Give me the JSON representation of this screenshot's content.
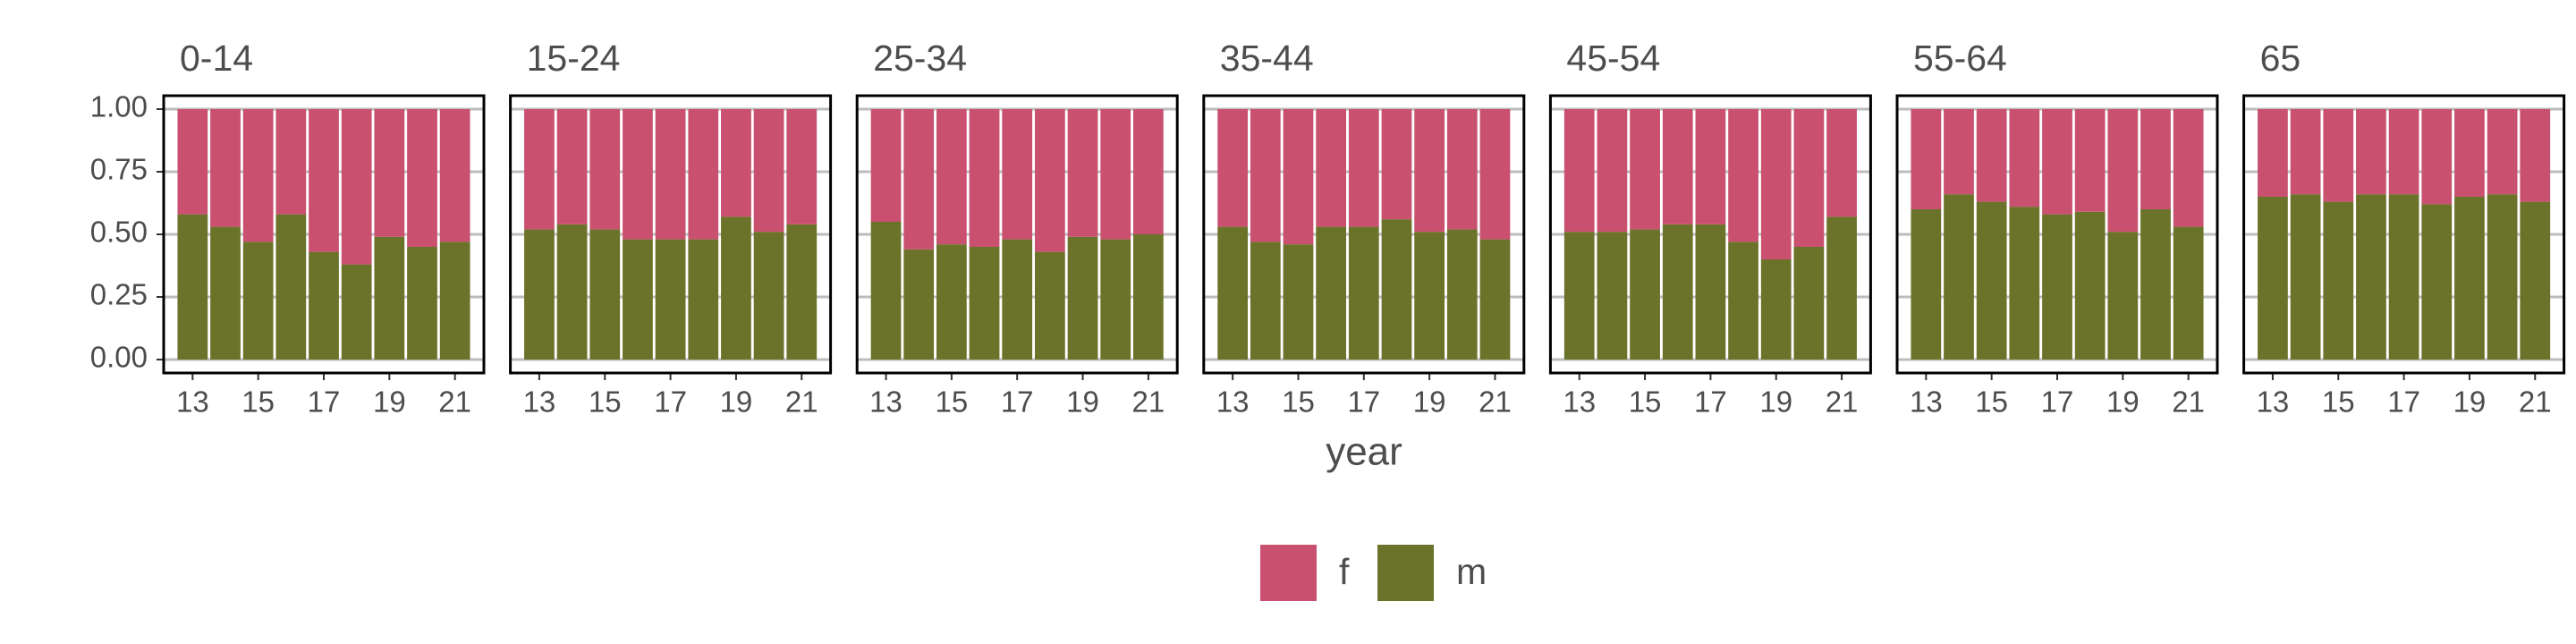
{
  "chart_data": {
    "type": "bar",
    "stacked": true,
    "xlabel": "year",
    "categories": [
      "13",
      null,
      "15",
      null,
      "17",
      null,
      "19",
      null,
      "21"
    ],
    "ylim": [
      0,
      1
    ],
    "yticks": [
      {
        "value": 0,
        "label": "0.00"
      },
      {
        "value": 0.25,
        "label": "0.25"
      },
      {
        "value": 0.5,
        "label": "0.50"
      },
      {
        "value": 0.75,
        "label": "0.75"
      },
      {
        "value": 1,
        "label": "1.00"
      }
    ],
    "grid": true,
    "series": [
      {
        "name": "f",
        "color": "#c9506f"
      },
      {
        "name": "m",
        "color": "#6a7329"
      }
    ],
    "panels": [
      {
        "title": "0-14",
        "series": [
          {
            "values": [
              0.42,
              0.47,
              0.53,
              0.42,
              0.57,
              0.62,
              0.51,
              0.55,
              0.53
            ]
          },
          {
            "values": [
              0.58,
              0.53,
              0.47,
              0.58,
              0.43,
              0.38,
              0.49,
              0.45,
              0.47
            ]
          }
        ]
      },
      {
        "title": "15-24",
        "series": [
          {
            "values": [
              0.48,
              0.46,
              0.48,
              0.52,
              0.52,
              0.52,
              0.43,
              0.49,
              0.46
            ]
          },
          {
            "values": [
              0.52,
              0.54,
              0.52,
              0.48,
              0.48,
              0.48,
              0.57,
              0.51,
              0.54
            ]
          }
        ]
      },
      {
        "title": "25-34",
        "series": [
          {
            "values": [
              0.45,
              0.56,
              0.54,
              0.55,
              0.52,
              0.57,
              0.51,
              0.52,
              0.5
            ]
          },
          {
            "values": [
              0.55,
              0.44,
              0.46,
              0.45,
              0.48,
              0.43,
              0.49,
              0.48,
              0.5
            ]
          }
        ]
      },
      {
        "title": "35-44",
        "series": [
          {
            "values": [
              0.47,
              0.53,
              0.54,
              0.47,
              0.47,
              0.44,
              0.49,
              0.48,
              0.52
            ]
          },
          {
            "values": [
              0.53,
              0.47,
              0.46,
              0.53,
              0.53,
              0.56,
              0.51,
              0.52,
              0.48
            ]
          }
        ]
      },
      {
        "title": "45-54",
        "series": [
          {
            "values": [
              0.49,
              0.49,
              0.48,
              0.46,
              0.46,
              0.53,
              0.6,
              0.55,
              0.43
            ]
          },
          {
            "values": [
              0.51,
              0.51,
              0.52,
              0.54,
              0.54,
              0.47,
              0.4,
              0.45,
              0.57
            ]
          }
        ]
      },
      {
        "title": "55-64",
        "series": [
          {
            "values": [
              0.4,
              0.34,
              0.37,
              0.39,
              0.42,
              0.41,
              0.49,
              0.4,
              0.47
            ]
          },
          {
            "values": [
              0.6,
              0.66,
              0.63,
              0.61,
              0.58,
              0.59,
              0.51,
              0.6,
              0.53
            ]
          }
        ]
      },
      {
        "title": "65",
        "series": [
          {
            "values": [
              0.35,
              0.34,
              0.37,
              0.34,
              0.34,
              0.38,
              0.35,
              0.34,
              0.37
            ]
          },
          {
            "values": [
              0.65,
              0.66,
              0.63,
              0.66,
              0.66,
              0.62,
              0.65,
              0.66,
              0.63
            ]
          }
        ]
      }
    ]
  }
}
